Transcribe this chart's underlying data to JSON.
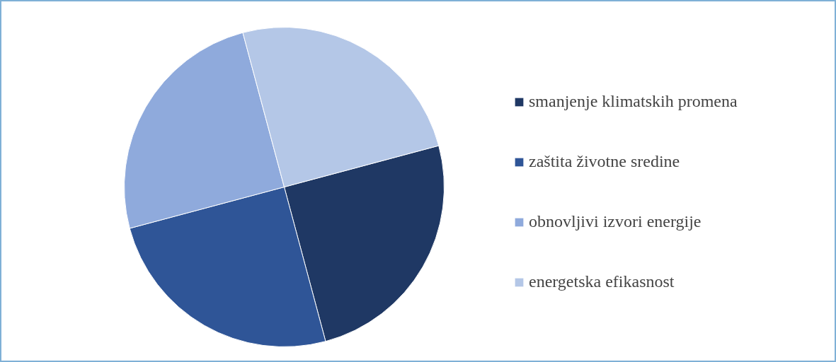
{
  "chart_data": {
    "type": "pie",
    "categories": [
      "smanjenje klimatskih promena",
      "zaštita životne sredine",
      "obnovljivi izvori energije",
      "energetska efikasnost"
    ],
    "values": [
      25,
      25,
      25,
      25
    ],
    "colors": [
      "#1f3864",
      "#2f5597",
      "#8faadc",
      "#b4c7e7"
    ],
    "legend": "right"
  }
}
